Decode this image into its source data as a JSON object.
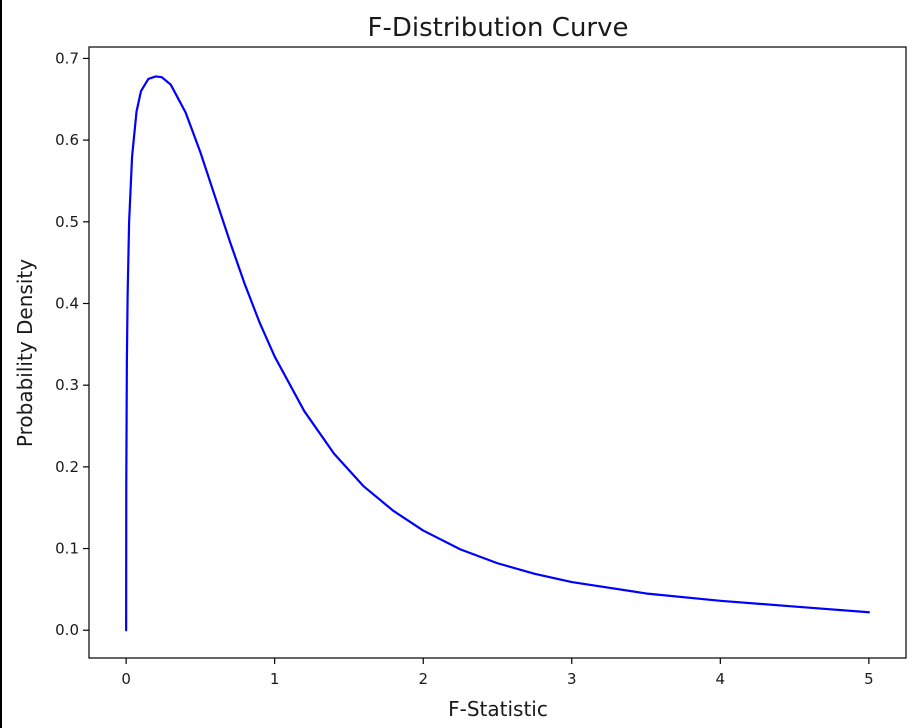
{
  "chart_data": {
    "type": "line",
    "title": "F-Distribution Curve",
    "xlabel": "F-Statistic",
    "ylabel": "Probability Density",
    "xlim": [
      -0.25,
      5.25
    ],
    "ylim": [
      -0.034,
      0.714
    ],
    "xticks": [
      0,
      1,
      2,
      3,
      4,
      5
    ],
    "xtick_labels": [
      "0",
      "1",
      "2",
      "3",
      "4",
      "5"
    ],
    "yticks": [
      0.0,
      0.1,
      0.2,
      0.3,
      0.4,
      0.5,
      0.6,
      0.7
    ],
    "ytick_labels": [
      "0.0",
      "0.1",
      "0.2",
      "0.3",
      "0.4",
      "0.5",
      "0.6",
      "0.7"
    ],
    "grid": false,
    "series": [
      {
        "color": "#0000ff",
        "x": [
          0.0,
          0.001,
          0.005,
          0.01,
          0.02,
          0.04,
          0.07,
          0.1,
          0.15,
          0.2,
          0.24,
          0.3,
          0.4,
          0.5,
          0.6,
          0.7,
          0.8,
          0.9,
          1.0,
          1.2,
          1.4,
          1.6,
          1.8,
          2.0,
          2.25,
          2.5,
          2.75,
          3.0,
          3.5,
          4.0,
          4.5,
          5.0
        ],
        "y": [
          0.0,
          0.18,
          0.33,
          0.41,
          0.5,
          0.58,
          0.635,
          0.66,
          0.675,
          0.678,
          0.677,
          0.668,
          0.634,
          0.585,
          0.53,
          0.475,
          0.423,
          0.376,
          0.335,
          0.268,
          0.216,
          0.176,
          0.146,
          0.122,
          0.099,
          0.082,
          0.069,
          0.059,
          0.045,
          0.036,
          0.029,
          0.022
        ]
      }
    ]
  }
}
